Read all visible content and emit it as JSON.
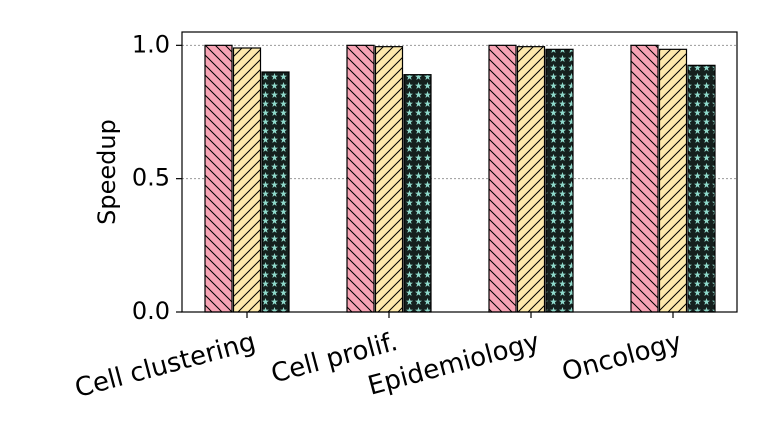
{
  "chart_data": {
    "type": "bar",
    "y_label": "Speedup",
    "categories": [
      "Cell clustering",
      "Cell prolif.",
      "Epidemiology",
      "Oncology"
    ],
    "series": [
      {
        "color": "#f7a3b4",
        "hatch": "back-diagonal",
        "values": [
          1.0,
          1.0,
          1.0,
          1.0
        ]
      },
      {
        "color": "#fde9ac",
        "hatch": "forward-diagonal",
        "values": [
          0.99,
          0.995,
          0.995,
          0.985
        ]
      },
      {
        "color": "#8fd9cb",
        "hatch": "stars",
        "values": [
          0.9,
          0.89,
          0.985,
          0.925
        ]
      }
    ],
    "ylim": [
      0,
      1.05
    ],
    "yticks": [
      {
        "value": 0,
        "label": "0.0"
      },
      {
        "value": 0.5,
        "label": "0.5"
      },
      {
        "value": 1,
        "label": "1.0"
      }
    ],
    "grid": true
  }
}
